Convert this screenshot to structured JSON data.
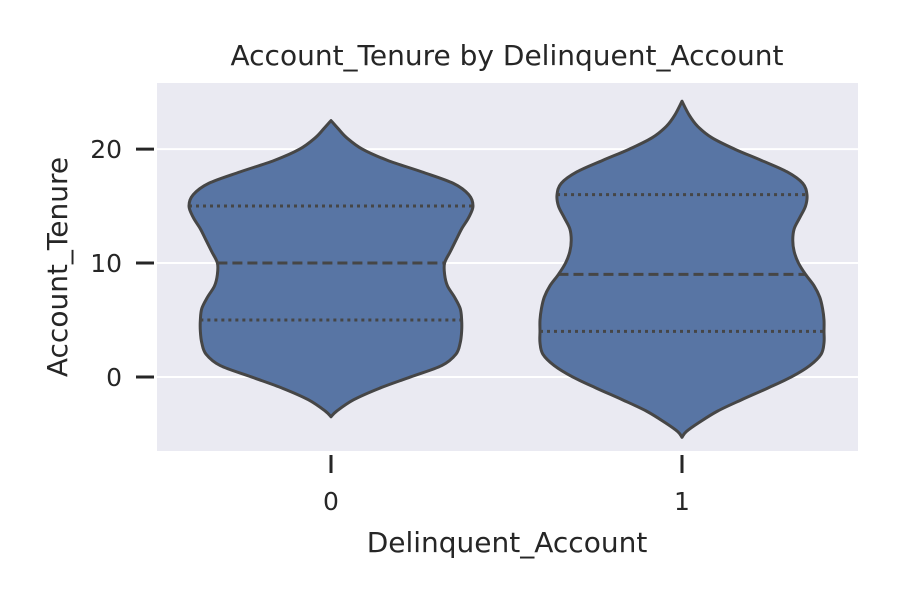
{
  "chart_data": {
    "type": "violin",
    "title": "Account_Tenure by Delinquent_Account",
    "xlabel": "Delinquent_Account",
    "ylabel": "Account_Tenure",
    "categories": [
      "0",
      "1"
    ],
    "ylim": [
      -6.5,
      25.8
    ],
    "yticks": [
      0,
      10,
      20
    ],
    "ytick_labels": [
      "0",
      "10",
      "20"
    ],
    "grid": true,
    "inner": "quartile",
    "colors": {
      "violin_fill": "#5875a4",
      "violin_edge": "#464646",
      "plot_background": "#eaeaf2",
      "grid": "#ffffff",
      "text": "#262626"
    },
    "violins": [
      {
        "category": "0",
        "min": -3.5,
        "max": 22.5,
        "quartiles": {
          "q1": 5,
          "median": 10,
          "q3": 15
        },
        "density_profile": [
          [
            -3.5,
            0.0
          ],
          [
            -3.0,
            0.04
          ],
          [
            -2.0,
            0.16
          ],
          [
            -1.0,
            0.34
          ],
          [
            0.0,
            0.56
          ],
          [
            1.0,
            0.78
          ],
          [
            2.0,
            0.88
          ],
          [
            3.0,
            0.91
          ],
          [
            4.0,
            0.92
          ],
          [
            5.0,
            0.92
          ],
          [
            6.0,
            0.91
          ],
          [
            7.0,
            0.87
          ],
          [
            8.0,
            0.82
          ],
          [
            9.0,
            0.8
          ],
          [
            10.0,
            0.8
          ],
          [
            11.0,
            0.84
          ],
          [
            12.0,
            0.88
          ],
          [
            13.0,
            0.92
          ],
          [
            14.0,
            0.97
          ],
          [
            15.0,
            1.0
          ],
          [
            16.0,
            0.97
          ],
          [
            17.0,
            0.86
          ],
          [
            18.0,
            0.64
          ],
          [
            19.0,
            0.4
          ],
          [
            20.0,
            0.22
          ],
          [
            21.0,
            0.11
          ],
          [
            21.8,
            0.05
          ],
          [
            22.5,
            0.0
          ]
        ]
      },
      {
        "category": "1",
        "min": -5.3,
        "max": 24.2,
        "quartiles": {
          "q1": 4,
          "median": 9,
          "q3": 16
        },
        "density_profile": [
          [
            -5.3,
            0.0
          ],
          [
            -4.8,
            0.03
          ],
          [
            -4.0,
            0.12
          ],
          [
            -3.0,
            0.25
          ],
          [
            -2.0,
            0.42
          ],
          [
            -1.0,
            0.6
          ],
          [
            0.0,
            0.77
          ],
          [
            1.0,
            0.9
          ],
          [
            2.0,
            0.98
          ],
          [
            3.0,
            1.0
          ],
          [
            4.0,
            1.0
          ],
          [
            5.0,
            1.0
          ],
          [
            6.0,
            0.99
          ],
          [
            7.0,
            0.97
          ],
          [
            8.0,
            0.93
          ],
          [
            9.0,
            0.87
          ],
          [
            10.0,
            0.82
          ],
          [
            11.0,
            0.79
          ],
          [
            12.0,
            0.78
          ],
          [
            13.0,
            0.79
          ],
          [
            14.0,
            0.83
          ],
          [
            15.0,
            0.87
          ],
          [
            16.0,
            0.88
          ],
          [
            17.0,
            0.85
          ],
          [
            18.0,
            0.74
          ],
          [
            19.0,
            0.56
          ],
          [
            20.0,
            0.37
          ],
          [
            21.0,
            0.21
          ],
          [
            22.0,
            0.11
          ],
          [
            23.0,
            0.05
          ],
          [
            24.2,
            0.0
          ]
        ]
      }
    ]
  }
}
